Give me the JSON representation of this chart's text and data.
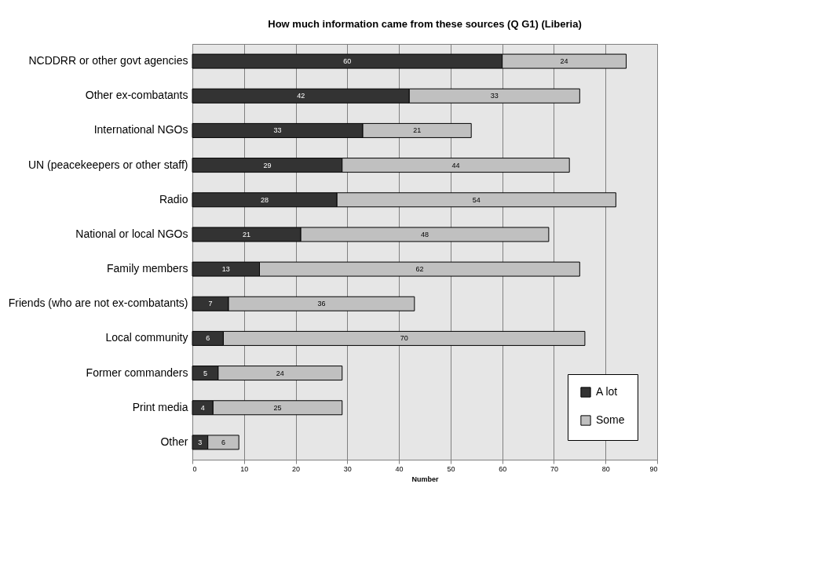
{
  "chart_data": {
    "type": "bar",
    "orientation": "horizontal",
    "stacked": true,
    "title": "How much information came from these sources (Q G1) (Liberia)",
    "xlabel": "Number",
    "categories": [
      "NCDDRR or other govt agencies",
      "Other ex-combatants",
      "International NGOs",
      "UN (peacekeepers or other staff)",
      "Radio",
      "National or local NGOs",
      "Family members",
      "Friends (who are not ex-combatants)",
      "Local community",
      "Former commanders",
      "Print media",
      "Other"
    ],
    "series": [
      {
        "name": "A lot",
        "color": "#333333",
        "values": [
          60,
          42,
          33,
          29,
          28,
          21,
          13,
          7,
          6,
          5,
          4,
          3
        ]
      },
      {
        "name": "Some",
        "color": "#c0c0c0",
        "values": [
          24,
          33,
          21,
          44,
          54,
          48,
          62,
          36,
          70,
          24,
          25,
          6
        ]
      }
    ],
    "xlim": [
      0,
      90
    ],
    "xticks": [
      0,
      10,
      20,
      30,
      40,
      50,
      60,
      70,
      80,
      90
    ],
    "grid": "x",
    "legend": "bottom right",
    "data_labels": true
  }
}
